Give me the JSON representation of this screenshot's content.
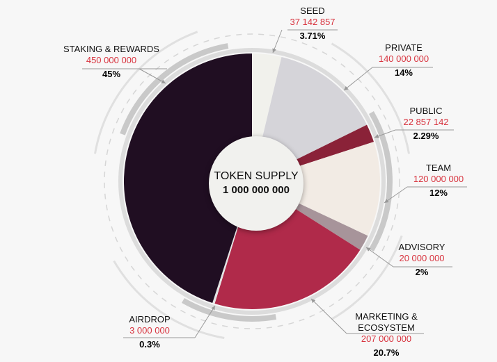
{
  "chart_data": {
    "type": "pie",
    "style": "donut",
    "center_label": {
      "title": "TOKEN SUPPLY",
      "total": "1 000 000 000"
    },
    "slices": [
      {
        "name": "SEED",
        "amount": "37 142 857",
        "percent_label": "3.71%",
        "value": 3.71,
        "color": "#f1f1ec"
      },
      {
        "name": "PRIVATE",
        "amount": "140 000 000",
        "percent_label": "14%",
        "value": 14,
        "color": "#d5d4d9"
      },
      {
        "name": "PUBLIC",
        "amount": "22 857 142",
        "percent_label": "2.29%",
        "value": 2.29,
        "color": "#8a2238"
      },
      {
        "name": "TEAM",
        "amount": "120 000 000",
        "percent_label": "12%",
        "value": 12,
        "color": "#f2ebe4"
      },
      {
        "name": "ADVISORY",
        "amount": "20 000 000",
        "percent_label": "2%",
        "value": 2,
        "color": "#a7949a"
      },
      {
        "name": "MARKETING & ECOSYSTEM",
        "amount": "207 000 000",
        "percent_label": "20.7%",
        "value": 20.7,
        "color": "#b02a4a"
      },
      {
        "name": "AIRDROP",
        "amount": "3 000 000",
        "percent_label": "0.3%",
        "value": 0.3,
        "color": "#e4e4e4"
      },
      {
        "name": "STAKING & REWARDS",
        "amount": "450 000 000",
        "percent_label": "45%",
        "value": 45,
        "color": "#200e22"
      }
    ]
  }
}
